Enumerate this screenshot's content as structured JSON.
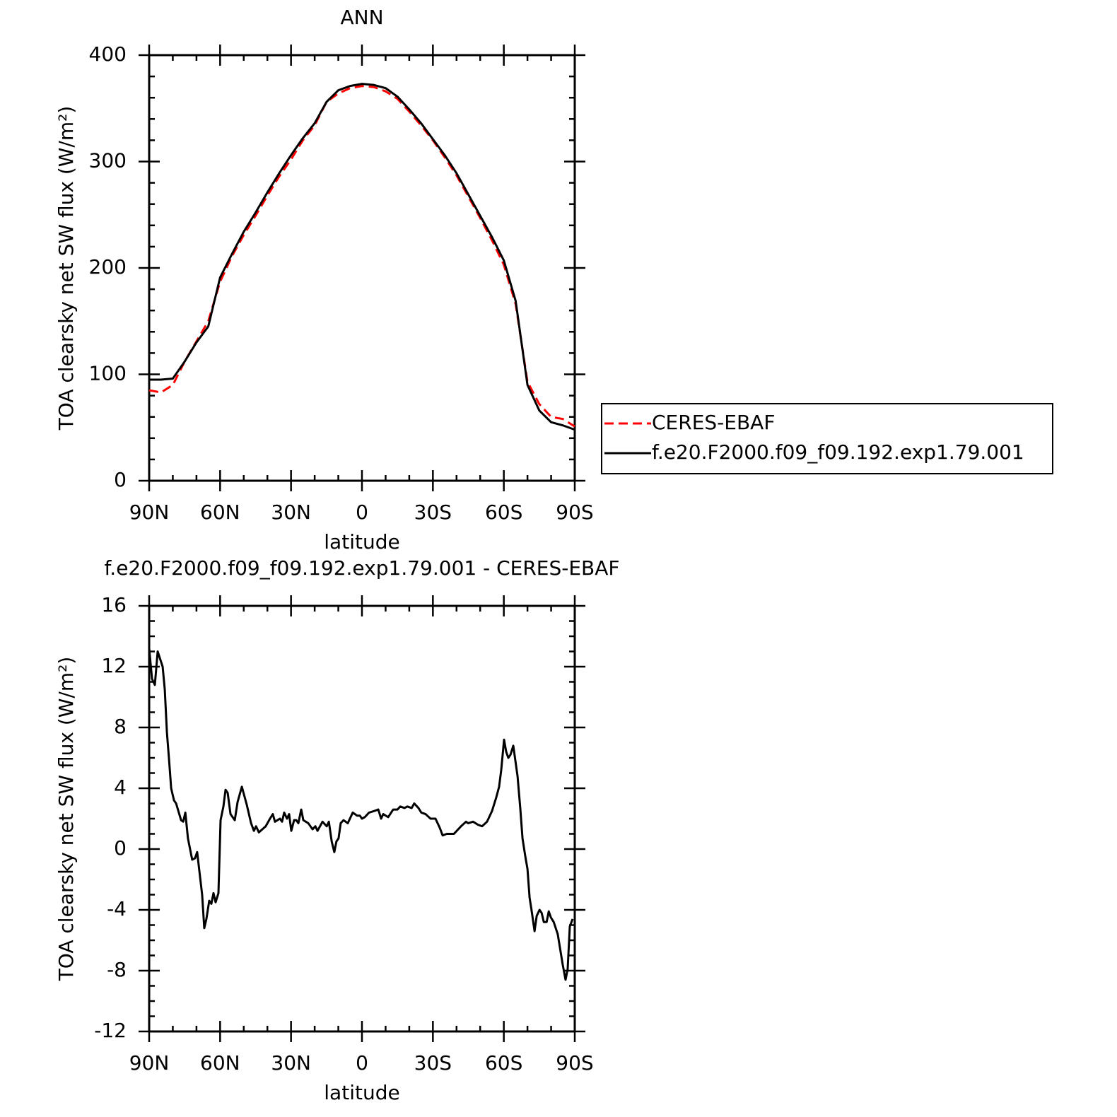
{
  "chart_data": [
    {
      "type": "line",
      "title": "ANN",
      "xlabel": "latitude",
      "ylabel": "TOA clearsky net SW flux (W/m²)",
      "x": [
        90,
        85,
        80,
        75,
        70,
        65,
        60,
        55,
        50,
        45,
        40,
        35,
        30,
        25,
        20,
        15,
        10,
        5,
        0,
        -5,
        -10,
        -15,
        -20,
        -25,
        -30,
        -35,
        -40,
        -45,
        -50,
        -55,
        -60,
        -65,
        -70,
        -75,
        -80,
        -85,
        -90
      ],
      "series": [
        {
          "name": "CERES-EBAF",
          "color": "#ff0000",
          "dash": true,
          "values": [
            85,
            83,
            90,
            112,
            131,
            150,
            187,
            211,
            231,
            249,
            268,
            286,
            302,
            320,
            334,
            356,
            364,
            369,
            371,
            370,
            366,
            359,
            347,
            334,
            320,
            304,
            287,
            267,
            247,
            226,
            203,
            166,
            93,
            72,
            60,
            58,
            51
          ]
        },
        {
          "name": "f.e20.F2000.f09_f09.192.exp1.79.001",
          "color": "#000000",
          "dash": false,
          "values": [
            95,
            95,
            96,
            112,
            130,
            145,
            191,
            213,
            234,
            252,
            271,
            289,
            306,
            322,
            336,
            356,
            367,
            371,
            373,
            372,
            369,
            361,
            349,
            336,
            321,
            306,
            289,
            269,
            249,
            229,
            207,
            169,
            90,
            66,
            55,
            52,
            48
          ]
        }
      ],
      "xlim": [
        90,
        -90
      ],
      "xticks": [
        {
          "value": 90,
          "label": "90N"
        },
        {
          "value": 60,
          "label": "60N"
        },
        {
          "value": 30,
          "label": "30N"
        },
        0,
        {
          "value": -30,
          "label": "30S"
        },
        {
          "value": -60,
          "label": "60S"
        },
        {
          "value": -90,
          "label": "90S"
        }
      ],
      "xminorticks": [
        80,
        70,
        50,
        40,
        20,
        10,
        -10,
        -20,
        -40,
        -50,
        -70,
        -80
      ],
      "ylim": [
        0,
        400
      ],
      "yticks": [
        0,
        100,
        200,
        300,
        400
      ],
      "yminorticks": [
        20,
        40,
        60,
        80,
        120,
        140,
        160,
        180,
        220,
        240,
        260,
        280,
        320,
        340,
        360,
        380
      ],
      "legend": "right"
    },
    {
      "type": "line",
      "title": "f.e20.F2000.f09_f09.192.exp1.79.001 - CERES-EBAF",
      "xlabel": "latitude",
      "ylabel": "TOA clearsky net SW flux (W/m²)",
      "color": "#000000",
      "x": [
        90,
        88.8,
        87.6,
        86.4,
        84.3,
        83.4,
        82.5,
        81.6,
        80.7,
        79.5,
        78.6,
        76.5,
        75.6,
        74.7,
        73.6,
        71.8,
        70.6,
        69.7,
        67.6,
        66.7,
        65.8,
        64.6,
        63.7,
        62.8,
        61.9,
        60.7,
        59.8,
        58.6,
        57.7,
        56.8,
        55.6,
        53.8,
        52.6,
        50.8,
        48.7,
        46.9,
        45.7,
        44.8,
        43.6,
        40.7,
        38.9,
        37.7,
        36.8,
        34.7,
        33.8,
        32.9,
        31.7,
        30.8,
        29.9,
        28.7,
        27.8,
        26.9,
        25.7,
        24.8,
        22.7,
        20.9,
        19.7,
        18.8,
        16.7,
        14.9,
        14.0,
        12.8,
        11.7,
        10.8,
        9.9,
        9.0,
        7.8,
        6.0,
        3.9,
        2.1,
        0.9,
        0.0,
        -1.2,
        -3.0,
        -5.1,
        -6.9,
        -8.1,
        -9.0,
        -11.1,
        -13.2,
        -15.0,
        -16.2,
        -18.0,
        -19.2,
        -21.0,
        -22.1,
        -23.9,
        -25.1,
        -26.9,
        -29.0,
        -31.1,
        -32.9,
        -34.1,
        -35.9,
        -38.9,
        -41.9,
        -44.0,
        -44.9,
        -47.0,
        -49.1,
        -50.8,
        -52.9,
        -55.0,
        -56.8,
        -58.0,
        -58.9,
        -60.1,
        -61.0,
        -61.9,
        -62.8,
        -64.0,
        -65.8,
        -67.0,
        -67.9,
        -69.1,
        -70.0,
        -70.9,
        -71.8,
        -73.0,
        -73.9,
        -75.1,
        -76.0,
        -76.9,
        -78.1,
        -79.0,
        -79.9,
        -81.1,
        -82.8,
        -84.9,
        -86.1,
        -87.0,
        -87.9,
        -89.1
      ],
      "values": [
        13.2,
        11.2,
        10.8,
        13.0,
        12.0,
        10.5,
        7.7,
        5.9,
        4.0,
        3.2,
        3.0,
        1.9,
        1.8,
        2.4,
        0.7,
        -0.7,
        -0.6,
        -0.2,
        -3.0,
        -5.2,
        -4.6,
        -3.4,
        -3.6,
        -2.9,
        -3.5,
        -2.9,
        1.9,
        2.8,
        3.9,
        3.7,
        2.3,
        1.9,
        3.1,
        4.1,
        2.9,
        1.7,
        1.2,
        1.5,
        1.1,
        1.5,
        2.0,
        2.3,
        1.8,
        2.0,
        1.8,
        2.4,
        2.0,
        2.3,
        1.2,
        1.9,
        1.9,
        1.7,
        2.6,
        1.9,
        1.7,
        1.3,
        1.5,
        1.2,
        1.8,
        1.5,
        1.8,
        0.5,
        -0.2,
        0.5,
        0.7,
        1.7,
        1.9,
        1.7,
        2.4,
        2.2,
        2.2,
        2.0,
        2.1,
        2.4,
        2.5,
        2.6,
        2.0,
        2.3,
        2.1,
        2.6,
        2.6,
        2.8,
        2.7,
        2.8,
        2.7,
        3.0,
        2.7,
        2.4,
        2.3,
        2.0,
        2.0,
        1.4,
        0.9,
        1.0,
        1.0,
        1.5,
        1.8,
        1.7,
        1.8,
        1.6,
        1.5,
        1.8,
        2.5,
        3.4,
        4.1,
        5.2,
        7.2,
        6.4,
        6.0,
        6.2,
        6.8,
        4.8,
        2.6,
        0.7,
        -0.5,
        -1.3,
        -3.2,
        -4.1,
        -5.4,
        -4.4,
        -4.0,
        -4.2,
        -4.8,
        -4.8,
        -4.1,
        -4.5,
        -4.8,
        -5.6,
        -7.6,
        -8.6,
        -7.9,
        -5.1,
        -4.6
      ],
      "xlim": [
        90,
        -90
      ],
      "xticks": [
        {
          "value": 90,
          "label": "90N"
        },
        {
          "value": 60,
          "label": "60N"
        },
        {
          "value": 30,
          "label": "30N"
        },
        0,
        {
          "value": -30,
          "label": "30S"
        },
        {
          "value": -60,
          "label": "60S"
        },
        {
          "value": -90,
          "label": "90S"
        }
      ],
      "xminorticks": [
        80,
        70,
        50,
        40,
        20,
        10,
        -10,
        -20,
        -40,
        -50,
        -70,
        -80
      ],
      "ylim": [
        -12,
        16
      ],
      "yticks": [
        -12,
        -8,
        -4,
        0,
        4,
        8,
        12,
        16
      ],
      "yminorticks": [
        -11,
        -10,
        -9,
        -7,
        -6,
        -5,
        -3,
        -2,
        -1,
        1,
        2,
        3,
        5,
        6,
        7,
        9,
        10,
        11,
        13,
        14,
        15
      ]
    }
  ]
}
